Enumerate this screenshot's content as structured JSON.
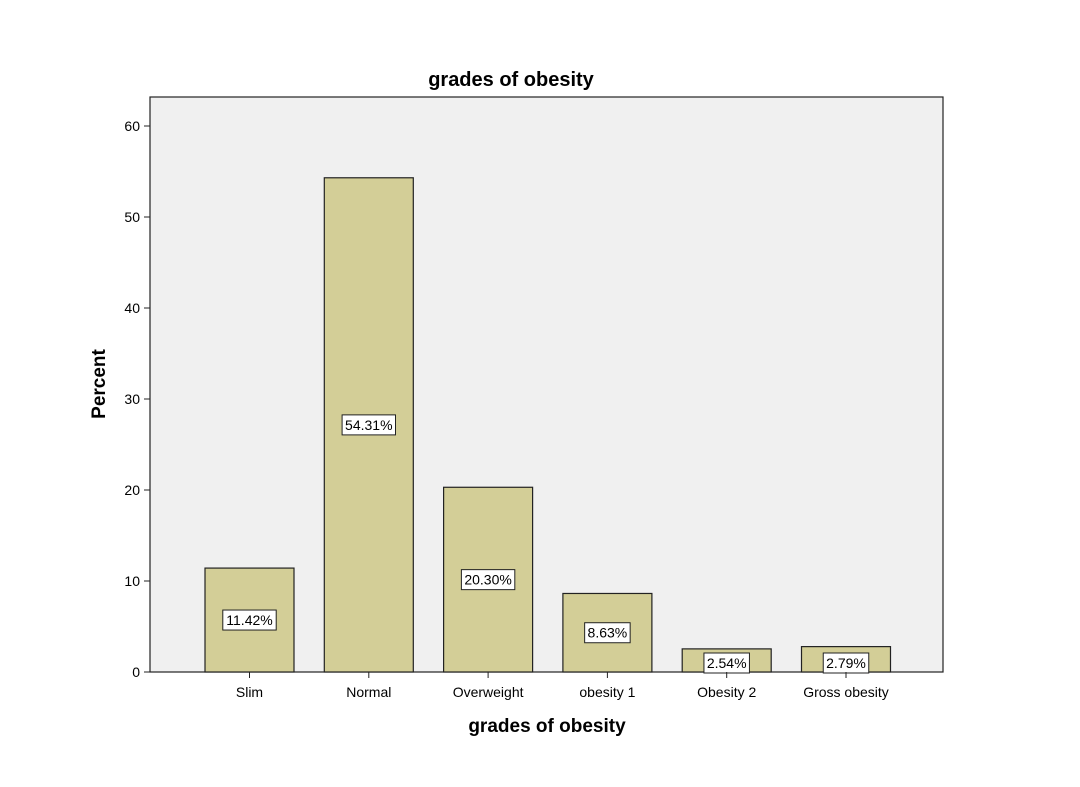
{
  "chart_data": {
    "type": "bar",
    "title": "grades of obesity",
    "xlabel": "grades of obesity",
    "ylabel": "Percent",
    "categories": [
      "Slim",
      "Normal",
      "Overweight",
      "obesity 1",
      "Obesity 2",
      "Gross obesity"
    ],
    "values": [
      11.42,
      54.31,
      20.3,
      8.63,
      2.54,
      2.79
    ],
    "data_labels": [
      "11.42%",
      "54.31%",
      "20.30%",
      "8.63%",
      "2.54%",
      "2.79%"
    ],
    "ylim": [
      0,
      63
    ],
    "yticks": [
      0,
      10,
      20,
      30,
      40,
      50,
      60
    ],
    "ytick_labels": [
      "0",
      "10",
      "20",
      "30",
      "40",
      "50",
      "60"
    ],
    "grid": false,
    "legend": "none"
  },
  "colors": {
    "plot_background": "#f0f0f0",
    "bar_fill": "#d3ce97",
    "bar_stroke": "#222222",
    "label_box": "#ffffff"
  }
}
